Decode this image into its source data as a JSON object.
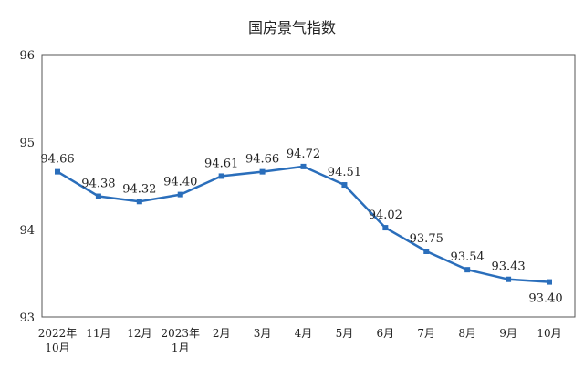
{
  "chart_data": {
    "type": "line",
    "title": "国房景气指数",
    "xlabel": "",
    "ylabel": "",
    "ylim": [
      93,
      96
    ],
    "yticks": [
      "93",
      "94",
      "95",
      "96"
    ],
    "grid": false,
    "legend": "none",
    "categories": [
      [
        "2022年",
        "10月"
      ],
      [
        "11月"
      ],
      [
        "12月"
      ],
      [
        "2023年",
        "1月"
      ],
      [
        "2月"
      ],
      [
        "3月"
      ],
      [
        "4月"
      ],
      [
        "5月"
      ],
      [
        "6月"
      ],
      [
        "7月"
      ],
      [
        "8月"
      ],
      [
        "9月"
      ],
      [
        "10月"
      ]
    ],
    "series": [
      {
        "values": [
          94.66,
          94.38,
          94.32,
          94.4,
          94.61,
          94.66,
          94.72,
          94.51,
          94.02,
          93.75,
          93.54,
          93.43,
          93.4
        ],
        "labels": [
          "94.66",
          "94.38",
          "94.32",
          "94.40",
          "94.61",
          "94.66",
          "94.72",
          "94.51",
          "94.02",
          "93.75",
          "93.54",
          "93.43",
          "93.40"
        ],
        "color": "#2a6ebb"
      }
    ]
  }
}
